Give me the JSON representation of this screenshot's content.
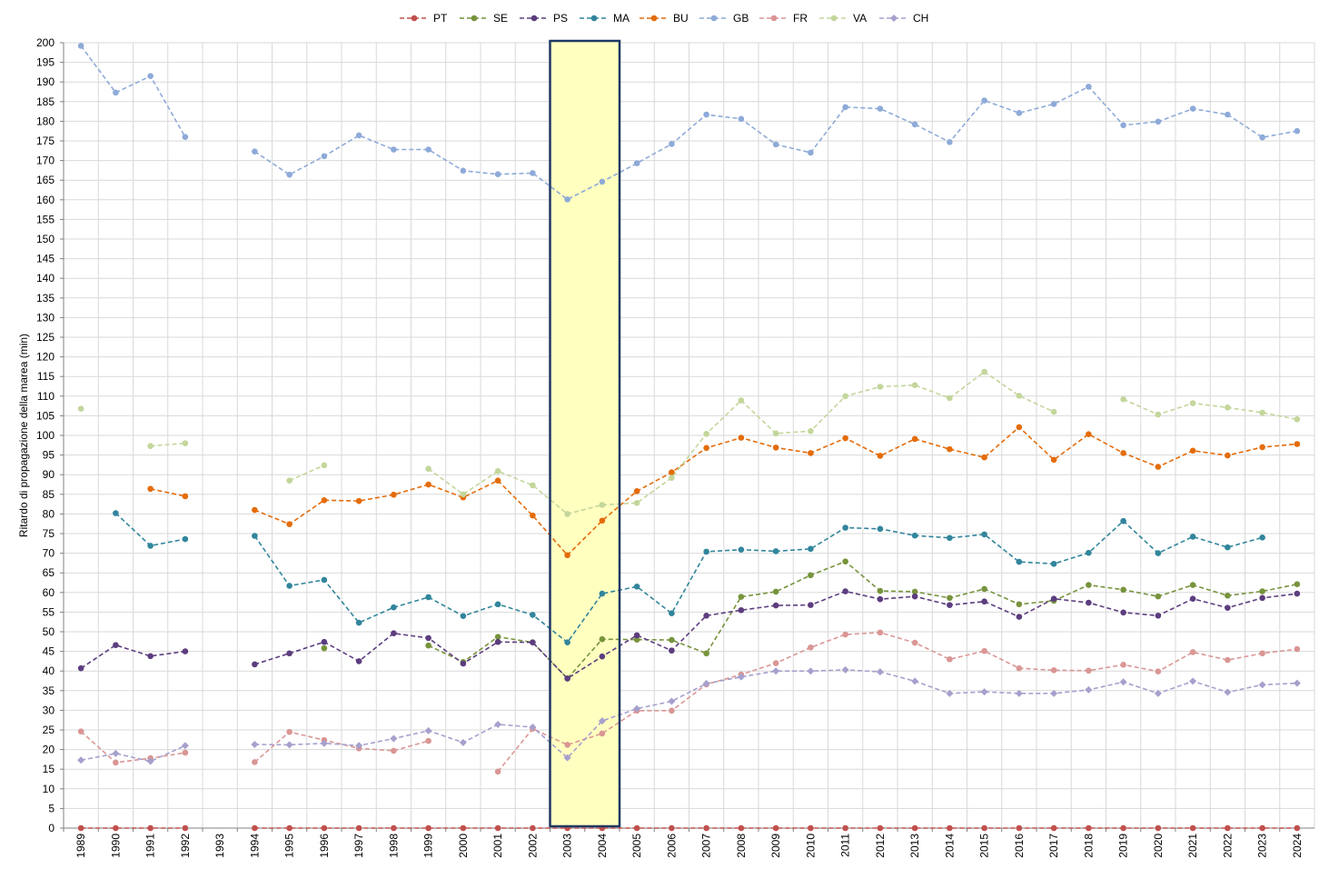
{
  "chart_data": {
    "type": "line",
    "title": "",
    "xlabel": "",
    "ylabel": "Ritardo di propagazione della marea (min)",
    "ylim": [
      0,
      200
    ],
    "ytick_step": 5,
    "grid": true,
    "legend_position": "top-center",
    "line_style": "dashed",
    "categories": [
      "1989",
      "1990",
      "1991",
      "1992",
      "1993",
      "1994",
      "1995",
      "1996",
      "1997",
      "1998",
      "1999",
      "2000",
      "2001",
      "2002",
      "2003",
      "2004",
      "2005",
      "2006",
      "2007",
      "2008",
      "2009",
      "2010",
      "2011",
      "2012",
      "2013",
      "2014",
      "2015",
      "2016",
      "2017",
      "2018",
      "2019",
      "2020",
      "2021",
      "2022",
      "2023",
      "2024"
    ],
    "highlight": {
      "from": "2003",
      "to": "2004",
      "fill": "#ffffc0",
      "stroke": "#1f3864"
    },
    "series": [
      {
        "name": "PT",
        "color": "#c0504d",
        "marker": "circle",
        "values": [
          0,
          0,
          0,
          0,
          null,
          0,
          0,
          0,
          0,
          0,
          0,
          0,
          0,
          0,
          0,
          0,
          0,
          0,
          0,
          0,
          0,
          0,
          0,
          0,
          0,
          0,
          0,
          0,
          0,
          0,
          0,
          0,
          0,
          0,
          0,
          0
        ]
      },
      {
        "name": "SE",
        "color": "#77933c",
        "marker": "circle",
        "values": [
          null,
          null,
          null,
          null,
          null,
          null,
          null,
          45.8,
          null,
          null,
          46.5,
          42.3,
          48.7,
          47.3,
          38.1,
          48.1,
          48.0,
          47.9,
          44.5,
          58.9,
          60.2,
          64.4,
          67.9,
          60.4,
          60.2,
          58.6,
          60.9,
          57.0,
          57.9,
          61.9,
          60.7,
          59.0,
          61.9,
          59.2,
          60.3,
          62.1
        ]
      },
      {
        "name": "PS",
        "color": "#5c3d7f",
        "marker": "circle",
        "values": [
          40.7,
          46.6,
          43.8,
          45.0,
          null,
          41.7,
          44.5,
          47.4,
          42.5,
          49.6,
          48.4,
          41.9,
          47.4,
          47.3,
          38.1,
          43.7,
          49.1,
          45.2,
          54.1,
          55.5,
          56.7,
          56.8,
          60.3,
          58.3,
          59.0,
          56.8,
          57.7,
          53.8,
          58.4,
          57.4,
          54.9,
          54.1,
          58.4,
          56.1,
          58.6,
          59.7
        ]
      },
      {
        "name": "MA",
        "color": "#31859c",
        "marker": "circle",
        "values": [
          null,
          80.2,
          71.9,
          73.6,
          null,
          74.4,
          61.7,
          63.2,
          52.3,
          56.2,
          58.8,
          54.0,
          57.0,
          54.3,
          47.3,
          59.7,
          61.5,
          54.7,
          70.4,
          70.9,
          70.5,
          71.1,
          76.5,
          76.2,
          74.5,
          73.9,
          74.8,
          67.8,
          67.3,
          70.1,
          78.2,
          70.0,
          74.2,
          71.5,
          74.0,
          null
        ]
      },
      {
        "name": "BU",
        "color": "#e46c0a",
        "marker": "circle",
        "values": [
          null,
          null,
          86.4,
          84.5,
          null,
          81.0,
          77.4,
          83.5,
          83.3,
          84.9,
          87.5,
          84.2,
          88.5,
          79.6,
          69.5,
          78.3,
          85.8,
          90.6,
          96.8,
          99.4,
          96.9,
          95.5,
          99.3,
          94.8,
          99.1,
          96.5,
          94.4,
          102.1,
          93.8,
          100.3,
          95.5,
          92.0,
          96.1,
          94.9,
          97.0,
          97.8
        ]
      },
      {
        "name": "GB",
        "color": "#8eaad8",
        "marker": "circle",
        "values": [
          199.2,
          187.3,
          191.5,
          176.0,
          null,
          172.3,
          166.4,
          171.1,
          176.4,
          172.8,
          172.8,
          167.4,
          166.5,
          166.8,
          160.1,
          164.6,
          169.3,
          174.2,
          181.7,
          180.6,
          174.1,
          172.0,
          183.6,
          183.2,
          179.2,
          174.7,
          185.3,
          182.1,
          184.4,
          188.8,
          179.0,
          179.9,
          183.2,
          181.7,
          175.9,
          177.5
        ]
      },
      {
        "name": "FR",
        "color": "#d99694",
        "marker": "circle",
        "values": [
          24.6,
          16.7,
          17.8,
          19.2,
          null,
          16.8,
          24.5,
          22.4,
          20.3,
          19.7,
          22.2,
          null,
          14.4,
          25.3,
          21.2,
          24.1,
          29.9,
          29.9,
          36.6,
          39.1,
          42.0,
          46.0,
          49.3,
          49.8,
          47.2,
          43.0,
          45.1,
          40.7,
          40.2,
          40.1,
          41.6,
          39.9,
          44.8,
          42.8,
          44.5,
          45.6
        ]
      },
      {
        "name": "VA",
        "color": "#c3d69b",
        "marker": "circle",
        "values": [
          106.8,
          null,
          97.3,
          98.0,
          null,
          null,
          88.5,
          92.4,
          null,
          null,
          91.5,
          85.0,
          90.9,
          87.3,
          80.0,
          82.3,
          82.8,
          89.2,
          100.4,
          108.9,
          100.5,
          101.1,
          110.0,
          112.4,
          112.8,
          109.5,
          116.2,
          110.1,
          106.0,
          null,
          109.2,
          105.3,
          108.2,
          107.1,
          105.8,
          104.1
        ]
      },
      {
        "name": "CH",
        "color": "#a6a0cd",
        "marker": "diamond",
        "values": [
          17.3,
          19.0,
          17.0,
          21.0,
          null,
          21.3,
          21.2,
          21.6,
          21.0,
          22.8,
          24.8,
          21.8,
          26.4,
          25.7,
          17.9,
          27.3,
          30.4,
          32.3,
          36.8,
          38.5,
          40.0,
          40.0,
          40.3,
          39.8,
          37.4,
          34.3,
          34.7,
          34.3,
          34.3,
          35.2,
          37.2,
          34.3,
          37.4,
          34.6,
          36.5,
          36.9
        ]
      }
    ]
  }
}
